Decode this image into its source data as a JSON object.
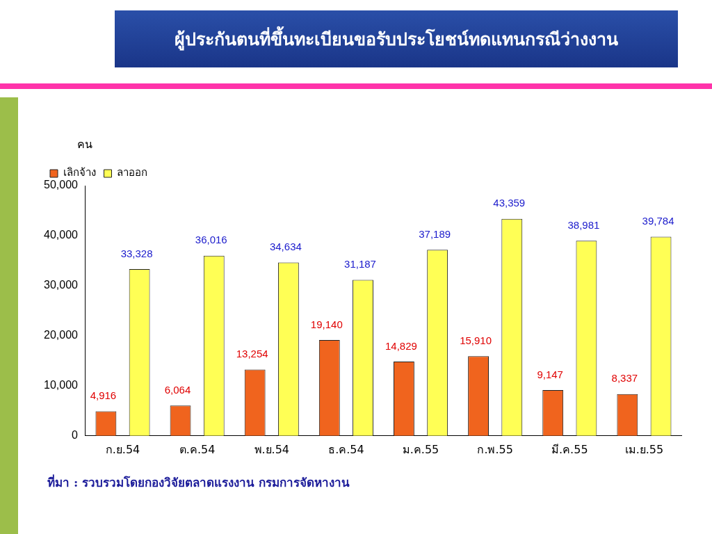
{
  "chart_data": {
    "type": "bar",
    "title": "ผู้ประกันตนที่ขึ้นทะเบียนขอรับประโยชน์ทดแทนกรณีว่างงาน",
    "ylabel": "คน",
    "categories": [
      "ก.ย.54",
      "ต.ค.54",
      "พ.ย.54",
      "ธ.ค.54",
      "ม.ค.55",
      "ก.พ.55",
      "มี.ค.55",
      "เม.ย.55"
    ],
    "series": [
      {
        "name": "เลิกจ้าง",
        "color": "#f0641e",
        "values": [
          4916,
          6064,
          13254,
          19140,
          14829,
          15910,
          9147,
          8337
        ],
        "value_labels": [
          "4,916",
          "6,064",
          "13,254",
          "19,140",
          "14,829",
          "15,910",
          "9,147",
          "8,337"
        ]
      },
      {
        "name": "ลาออก",
        "color": "#ffff55",
        "values": [
          33328,
          36016,
          34634,
          31187,
          37189,
          43359,
          38981,
          39784
        ],
        "value_labels": [
          "33,328",
          "36,016",
          "34,634",
          "31,187",
          "37,189",
          "43,359",
          "38,981",
          "39,784"
        ]
      }
    ],
    "ylim": [
      0,
      50000
    ],
    "yticks": [
      {
        "value": 0,
        "label": "0"
      },
      {
        "value": 10000,
        "label": "10,000"
      },
      {
        "value": 20000,
        "label": "20,000"
      },
      {
        "value": 30000,
        "label": "30,000"
      },
      {
        "value": 40000,
        "label": "40,000"
      },
      {
        "value": 50000,
        "label": "50,000"
      }
    ],
    "grid": false,
    "legend": "top left",
    "annotations": [
      "ที่มา : รวบรวมโดยกองวิจัยตลาดแรงงาน กรมการจัดหางาน"
    ]
  }
}
